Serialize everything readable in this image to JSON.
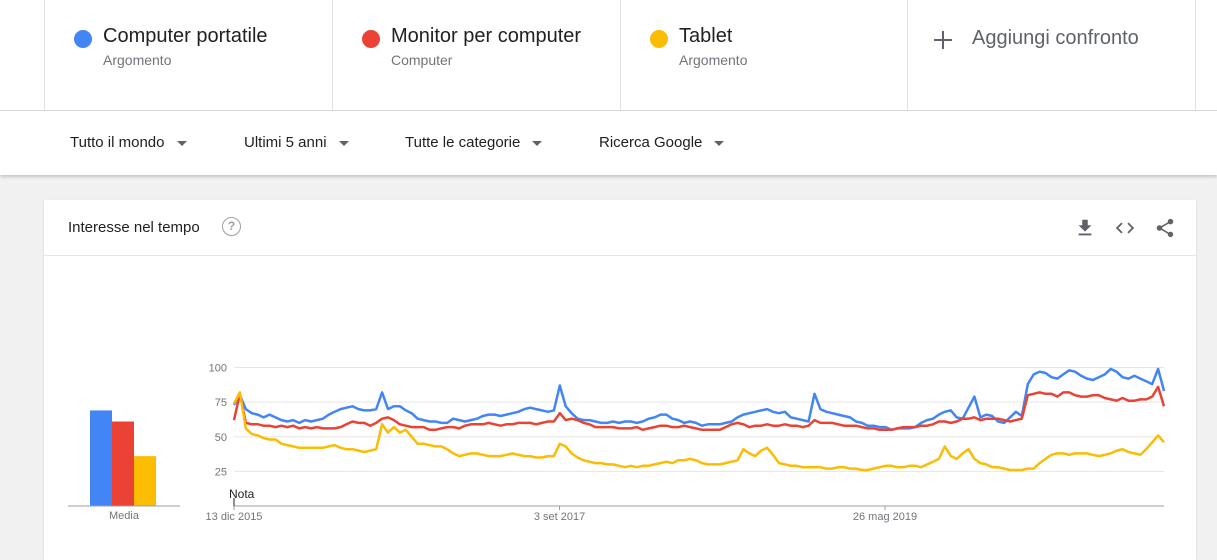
{
  "compare": {
    "terms": [
      {
        "name": "Computer portatile",
        "type": "Argomento",
        "color": "#4285f4"
      },
      {
        "name": "Monitor per computer",
        "type": "Computer",
        "color": "#ea4335"
      },
      {
        "name": "Tablet",
        "type": "Argomento",
        "color": "#fbbc04"
      }
    ],
    "add_label": "Aggiungi confronto"
  },
  "filters": {
    "region": "Tutto il mondo",
    "period": "Ultimi 5 anni",
    "category": "Tutte le categorie",
    "source": "Ricerca Google"
  },
  "card": {
    "title": "Interesse nel tempo",
    "help": "?",
    "icons": [
      "download-icon",
      "embed-code-icon",
      "share-icon"
    ]
  },
  "chart_data": {
    "type": "line",
    "ylim": [
      0,
      100
    ],
    "yticks": [
      25,
      50,
      75,
      100
    ],
    "x_tick_labels": [
      "13 dic 2015",
      "3 set 2017",
      "26 mag 2019"
    ],
    "x_tick_fractions": [
      0,
      0.35,
      0.7
    ],
    "note_label": "Nota",
    "average": {
      "label": "Media",
      "values": [
        69,
        61,
        36
      ]
    },
    "series": [
      {
        "name": "Computer portatile",
        "color": "#4285f4",
        "values": [
          73,
          80,
          70,
          67,
          66,
          64,
          66,
          64,
          62,
          61,
          62,
          60,
          62,
          61,
          62,
          63,
          66,
          68,
          70,
          71,
          72,
          70,
          69,
          69,
          70,
          82,
          70,
          72,
          72,
          69,
          67,
          63,
          62,
          61,
          61,
          60,
          60,
          63,
          62,
          61,
          62,
          63,
          65,
          66,
          66,
          65,
          66,
          67,
          68,
          70,
          71,
          70,
          69,
          68,
          69,
          87,
          72,
          67,
          63,
          62,
          62,
          61,
          60,
          60,
          61,
          60,
          61,
          61,
          60,
          61,
          63,
          64,
          66,
          66,
          63,
          62,
          60,
          61,
          60,
          58,
          59,
          59,
          59,
          60,
          61,
          64,
          66,
          67,
          68,
          69,
          70,
          68,
          67,
          68,
          64,
          63,
          62,
          61,
          81,
          70,
          68,
          67,
          66,
          65,
          64,
          61,
          60,
          58,
          58,
          57,
          57,
          55,
          56,
          56,
          56,
          57,
          60,
          62,
          63,
          66,
          68,
          69,
          64,
          63,
          71,
          79,
          64,
          66,
          65,
          61,
          60,
          64,
          68,
          65,
          88,
          95,
          97,
          96,
          93,
          92,
          95,
          98,
          97,
          94,
          92,
          91,
          93,
          95,
          99,
          97,
          93,
          92,
          94,
          92,
          90,
          88,
          99,
          83
        ]
      },
      {
        "name": "Monitor per computer",
        "color": "#ea4335",
        "values": [
          62,
          81,
          60,
          59,
          59,
          58,
          58,
          57,
          58,
          57,
          58,
          56,
          57,
          56,
          57,
          56,
          56,
          56,
          57,
          59,
          61,
          60,
          60,
          58,
          60,
          63,
          64,
          62,
          59,
          58,
          57,
          57,
          57,
          55,
          55,
          56,
          57,
          57,
          56,
          58,
          59,
          59,
          59,
          60,
          59,
          58,
          59,
          59,
          60,
          60,
          60,
          59,
          60,
          61,
          61,
          67,
          62,
          63,
          62,
          60,
          59,
          57,
          57,
          57,
          57,
          56,
          56,
          56,
          57,
          55,
          56,
          57,
          58,
          58,
          57,
          57,
          58,
          57,
          56,
          55,
          55,
          55,
          55,
          57,
          59,
          60,
          59,
          57,
          58,
          58,
          59,
          58,
          58,
          59,
          58,
          58,
          57,
          58,
          62,
          60,
          60,
          60,
          59,
          58,
          58,
          58,
          57,
          56,
          56,
          55,
          55,
          55,
          56,
          57,
          57,
          57,
          58,
          58,
          59,
          61,
          61,
          60,
          61,
          63,
          63,
          64,
          62,
          63,
          63,
          63,
          62,
          61,
          62,
          63,
          80,
          81,
          82,
          81,
          81,
          79,
          82,
          82,
          80,
          79,
          79,
          80,
          80,
          78,
          77,
          76,
          78,
          76,
          76,
          77,
          77,
          79,
          86,
          72
        ]
      },
      {
        "name": "Tablet",
        "color": "#fbbc04",
        "values": [
          74,
          82,
          56,
          52,
          51,
          49,
          48,
          48,
          45,
          44,
          43,
          42,
          42,
          42,
          42,
          42,
          43,
          44,
          42,
          41,
          41,
          40,
          39,
          40,
          41,
          59,
          53,
          57,
          53,
          55,
          50,
          45,
          45,
          44,
          43,
          43,
          41,
          38,
          36,
          37,
          38,
          38,
          37,
          36,
          36,
          36,
          37,
          38,
          37,
          36,
          36,
          35,
          35,
          36,
          36,
          45,
          43,
          38,
          35,
          33,
          32,
          31,
          31,
          30,
          30,
          29,
          28,
          29,
          28,
          29,
          29,
          30,
          31,
          32,
          31,
          33,
          33,
          34,
          33,
          31,
          30,
          30,
          30,
          31,
          32,
          33,
          41,
          38,
          36,
          40,
          42,
          37,
          31,
          30,
          29,
          29,
          28,
          28,
          28,
          28,
          27,
          27,
          28,
          28,
          27,
          27,
          26,
          26,
          27,
          28,
          29,
          29,
          28,
          28,
          29,
          29,
          28,
          30,
          32,
          34,
          43,
          36,
          34,
          38,
          41,
          34,
          31,
          30,
          28,
          28,
          27,
          26,
          26,
          26,
          27,
          27,
          31,
          34,
          37,
          38,
          38,
          37,
          38,
          38,
          38,
          37,
          36,
          37,
          38,
          40,
          41,
          39,
          38,
          37,
          41,
          46,
          51,
          46
        ]
      }
    ]
  }
}
